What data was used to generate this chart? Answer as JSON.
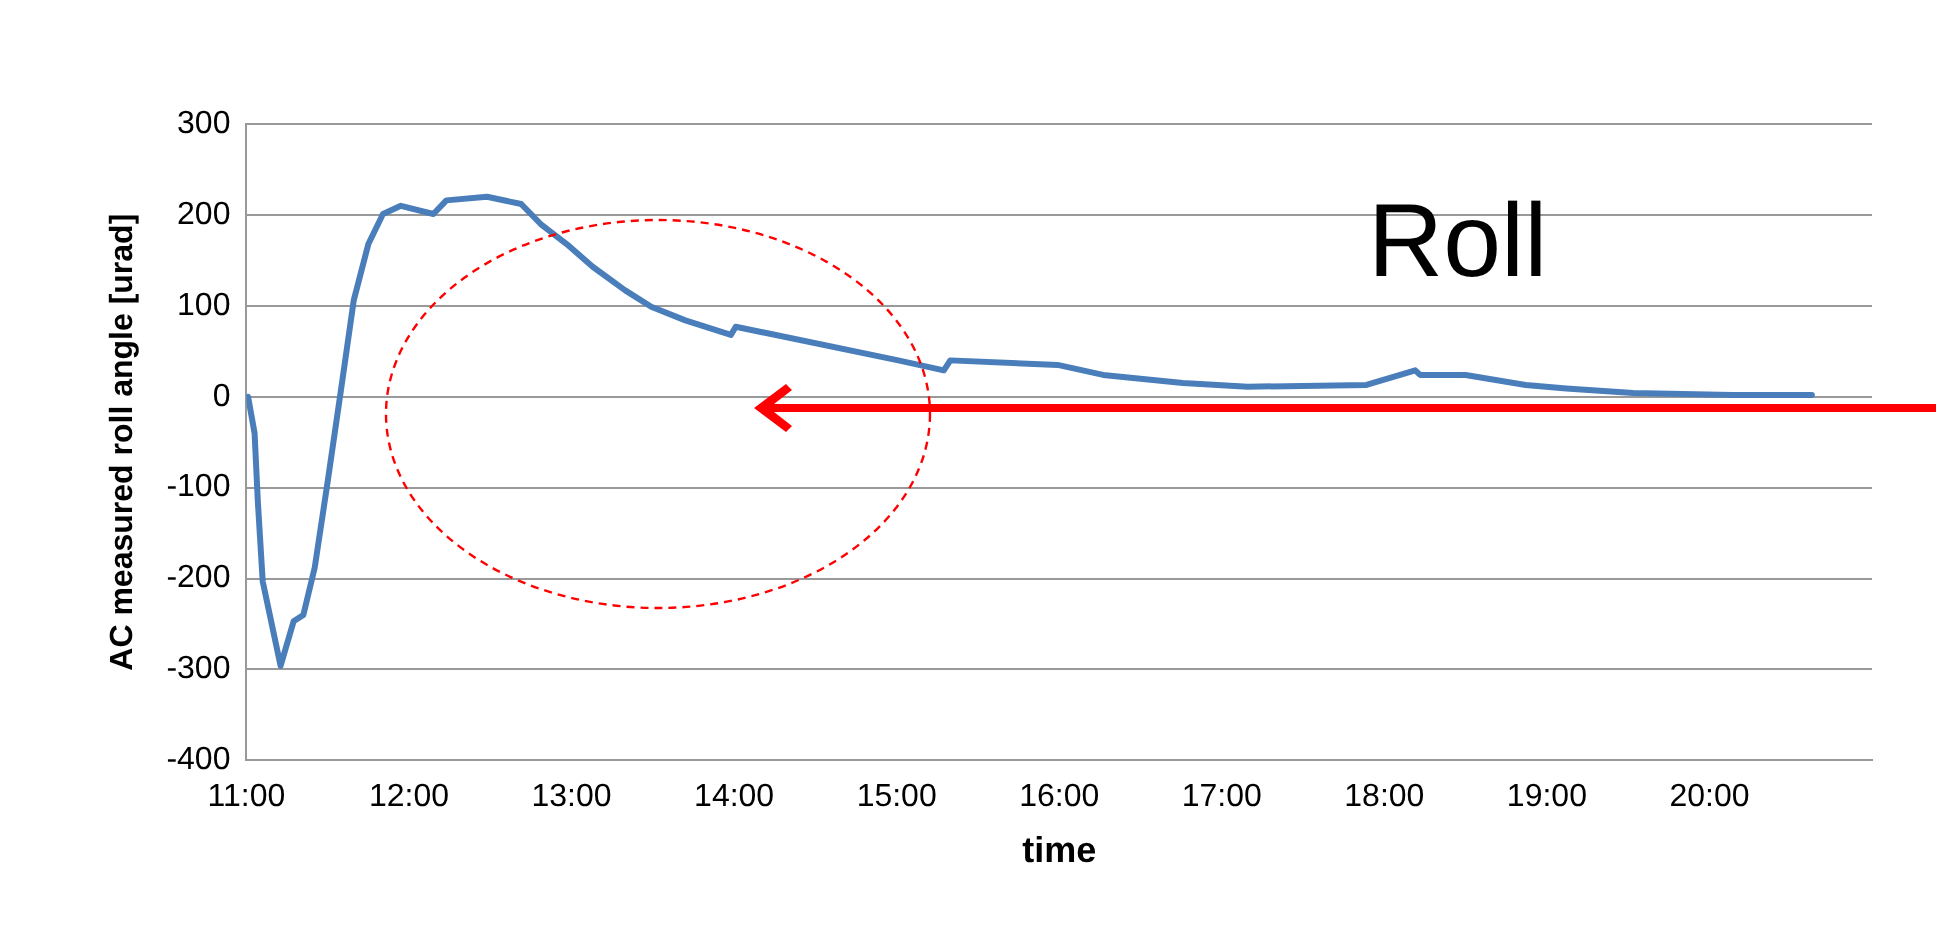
{
  "chart_data": {
    "type": "line",
    "title": "Roll",
    "xlabel": "time",
    "ylabel": "AC measured roll angle [urad]",
    "x": [
      11.01,
      11.05,
      11.07,
      11.1,
      11.21,
      11.29,
      11.35,
      11.42,
      11.5,
      11.59,
      11.66,
      11.75,
      11.84,
      11.95,
      12.15,
      12.23,
      12.48,
      12.69,
      12.81,
      12.97,
      13.13,
      13.33,
      13.49,
      13.7,
      13.98,
      14.01,
      15.01,
      15.29,
      15.33,
      15.99,
      16.27,
      16.76,
      17.16,
      17.89,
      18.19,
      18.22,
      18.5,
      18.87,
      19.12,
      19.53,
      20.14,
      20.39,
      20.63
    ],
    "series": [
      {
        "color": "#4a7ebb",
        "values": [
          0,
          -40,
          -115,
          -203,
          -296,
          -247,
          -240,
          -188,
          -93,
          18,
          106,
          168,
          201,
          210,
          201,
          216,
          220,
          212,
          190,
          168,
          143,
          117,
          99,
          84,
          68,
          77,
          40,
          29,
          40,
          35,
          24,
          15,
          11,
          13,
          29,
          24,
          24,
          13,
          9,
          4,
          2,
          2,
          2
        ]
      }
    ],
    "xlim": [
      11,
      21
    ],
    "xticks": [
      {
        "value": 11,
        "label": "11:00"
      },
      {
        "value": 12,
        "label": "12:00"
      },
      {
        "value": 13,
        "label": "13:00"
      },
      {
        "value": 14,
        "label": "14:00"
      },
      {
        "value": 15,
        "label": "15:00"
      },
      {
        "value": 16,
        "label": "16:00"
      },
      {
        "value": 17,
        "label": "17:00"
      },
      {
        "value": 18,
        "label": "18:00"
      },
      {
        "value": 19,
        "label": "19:00"
      },
      {
        "value": 20,
        "label": "20:00"
      }
    ],
    "ylim": [
      -400,
      300
    ],
    "yticks": [
      -400,
      -300,
      -200,
      -100,
      0,
      100,
      200,
      300
    ],
    "grid": "y",
    "legend": false,
    "marker": "none",
    "line_style": "solid"
  }
}
